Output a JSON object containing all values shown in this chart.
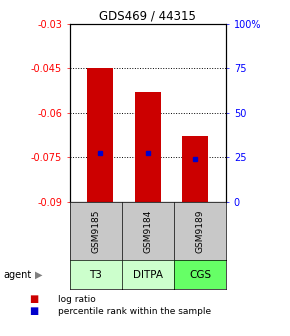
{
  "title": "GDS469 / 44315",
  "samples": [
    "GSM9185",
    "GSM9184",
    "GSM9189"
  ],
  "agents": [
    "T3",
    "DITPA",
    "CGS"
  ],
  "bar_tops": [
    -0.045,
    -0.053,
    -0.068
  ],
  "bar_bottom": -0.09,
  "percentile_values": [
    -0.0735,
    -0.0735,
    -0.0755
  ],
  "ylim_left": [
    -0.09,
    -0.03
  ],
  "ylim_right": [
    0,
    100
  ],
  "yticks_left": [
    -0.09,
    -0.075,
    -0.06,
    -0.045,
    -0.03
  ],
  "yticks_right": [
    0,
    25,
    50,
    75,
    100
  ],
  "ytick_labels_left": [
    "-0.09",
    "-0.075",
    "-0.06",
    "-0.045",
    "-0.03"
  ],
  "ytick_labels_right": [
    "0",
    "25",
    "50",
    "75",
    "100%"
  ],
  "bar_color": "#cc0000",
  "percentile_color": "#0000cc",
  "cell_gray": "#c8c8c8",
  "cell_green_light": "#ccffcc",
  "cell_green_bright": "#66ff66",
  "agent_label": "agent",
  "legend_logratio": "log ratio",
  "legend_percentile": "percentile rank within the sample",
  "dotted_yticks": [
    -0.075,
    -0.06,
    -0.045
  ]
}
